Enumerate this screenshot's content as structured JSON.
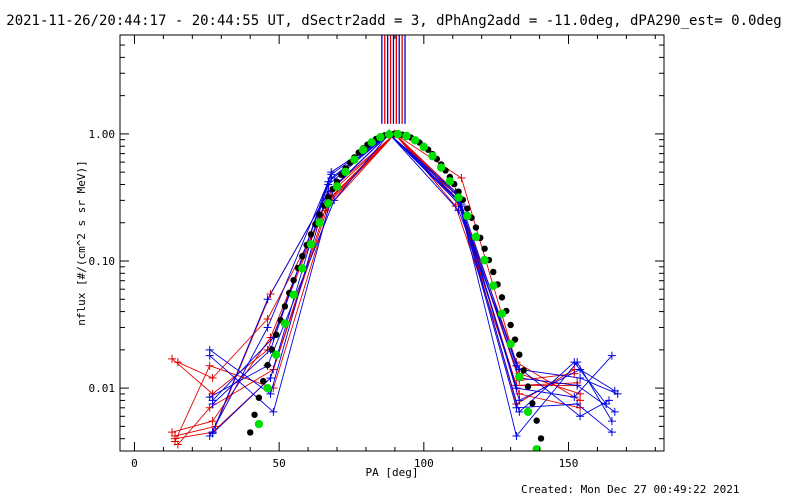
{
  "chart_data": {
    "type": "line",
    "title": "2021-11-26/20:44:17 - 20:44:55 UT, dSectr2add = 3, dPhAng2add = -11.0deg, dPA290_est=  0.0deg",
    "xlabel": "PA [deg]",
    "ylabel": "nflux [#/(cm^2 s sr MeV)]",
    "x_ticks": [
      "0",
      "50",
      "100",
      "150"
    ],
    "y_ticks": [
      "0.01",
      "0.10",
      "1.00"
    ],
    "xlim": [
      -5,
      183
    ],
    "ylim": [
      0.0032,
      6.0
    ],
    "y_scale": "log",
    "grid": false,
    "footer": "Created: Mon Dec 27 00:49:22 2021",
    "colors": {
      "red": "#e00000",
      "blue": "#0000e0",
      "green": "#00e000",
      "black": "#000000"
    },
    "line_series": [
      {
        "color": "red",
        "x": [
          14,
          27,
          47,
          67,
          90,
          112,
          132,
          153
        ],
        "y": [
          0.004,
          0.0045,
          0.012,
          0.3,
          1.0,
          0.3,
          0.0105,
          0.011
        ]
      },
      {
        "color": "red",
        "x": [
          15,
          26,
          48,
          68,
          90,
          111,
          133,
          154
        ],
        "y": [
          0.0036,
          0.007,
          0.014,
          0.32,
          1.0,
          0.27,
          0.009,
          0.007
        ]
      },
      {
        "color": "red",
        "x": [
          13,
          27,
          46,
          66,
          90,
          112,
          132,
          152
        ],
        "y": [
          0.017,
          0.009,
          0.02,
          0.28,
          1.0,
          0.32,
          0.0075,
          0.014
        ]
      },
      {
        "color": "red",
        "x": [
          14,
          28,
          47,
          67,
          90,
          113,
          133,
          154
        ],
        "y": [
          0.0042,
          0.005,
          0.055,
          0.35,
          1.0,
          0.45,
          0.013,
          0.009
        ]
      },
      {
        "color": "red",
        "x": [
          15,
          27,
          46,
          66,
          90,
          112,
          132,
          153
        ],
        "y": [
          0.016,
          0.012,
          0.035,
          0.25,
          1.0,
          0.28,
          0.0105,
          0.0105
        ]
      },
      {
        "color": "red",
        "x": [
          14,
          26,
          48,
          68,
          90,
          111,
          133,
          152
        ],
        "y": [
          0.0038,
          0.015,
          0.01,
          0.3,
          1.0,
          0.35,
          0.0115,
          0.013
        ]
      },
      {
        "color": "red",
        "x": [
          13,
          27,
          47,
          67,
          90,
          112,
          132,
          154
        ],
        "y": [
          0.0045,
          0.0055,
          0.025,
          0.33,
          1.0,
          0.3,
          0.016,
          0.008
        ]
      },
      {
        "color": "blue",
        "x": [
          26,
          46,
          68,
          88,
          112,
          132,
          153,
          165
        ],
        "y": [
          0.0042,
          0.03,
          0.48,
          1.0,
          0.3,
          0.0042,
          0.016,
          0.0055
        ]
      },
      {
        "color": "blue",
        "x": [
          27,
          47,
          67,
          88,
          113,
          133,
          154,
          166
        ],
        "y": [
          0.0044,
          0.012,
          0.42,
          1.0,
          0.27,
          0.008,
          0.014,
          0.0095
        ]
      },
      {
        "color": "blue",
        "x": [
          26,
          48,
          69,
          88,
          112,
          132,
          152,
          165
        ],
        "y": [
          0.018,
          0.0065,
          0.38,
          1.0,
          0.32,
          0.01,
          0.0085,
          0.018
        ]
      },
      {
        "color": "blue",
        "x": [
          27,
          46,
          67,
          88,
          112,
          133,
          154,
          167
        ],
        "y": [
          0.0045,
          0.05,
          0.35,
          1.0,
          0.25,
          0.014,
          0.012,
          0.009
        ]
      },
      {
        "color": "blue",
        "x": [
          26,
          47,
          68,
          88,
          111,
          132,
          153,
          165
        ],
        "y": [
          0.02,
          0.009,
          0.45,
          1.0,
          0.35,
          0.007,
          0.0075,
          0.0045
        ]
      },
      {
        "color": "blue",
        "x": [
          27,
          48,
          67,
          88,
          112,
          133,
          152,
          163
        ],
        "y": [
          0.008,
          0.025,
          0.4,
          1.0,
          0.3,
          0.0065,
          0.016,
          0.0075
        ]
      },
      {
        "color": "blue",
        "x": [
          26,
          46,
          69,
          88,
          113,
          132,
          154,
          164
        ],
        "y": [
          0.0085,
          0.015,
          0.3,
          1.0,
          0.28,
          0.015,
          0.006,
          0.008
        ]
      },
      {
        "color": "blue",
        "x": [
          27,
          47,
          68,
          88,
          112,
          133,
          153,
          166
        ],
        "y": [
          0.0075,
          0.02,
          0.5,
          1.0,
          0.3,
          0.012,
          0.0105,
          0.0065
        ]
      }
    ],
    "fit_black": {
      "color": "black",
      "x_start": 40,
      "x_end": 145,
      "step": 1.5,
      "center": 90,
      "amplitude": 1.0,
      "width": 21.5
    },
    "fit_green": {
      "color": "green",
      "x_start": 40,
      "x_end": 144,
      "step": 3,
      "center": 90,
      "amplitude": 1.0,
      "width": 20.5
    },
    "vertical_lines": {
      "x": [
        85.5,
        86.5,
        87.5,
        88.5,
        89.5,
        90.5,
        91.5,
        92.5,
        93.5
      ],
      "y_from": 1.2,
      "y_to": 6.0,
      "colors": [
        "blue",
        "red",
        "blue",
        "red",
        "blue",
        "red",
        "blue",
        "red",
        "blue"
      ]
    }
  }
}
